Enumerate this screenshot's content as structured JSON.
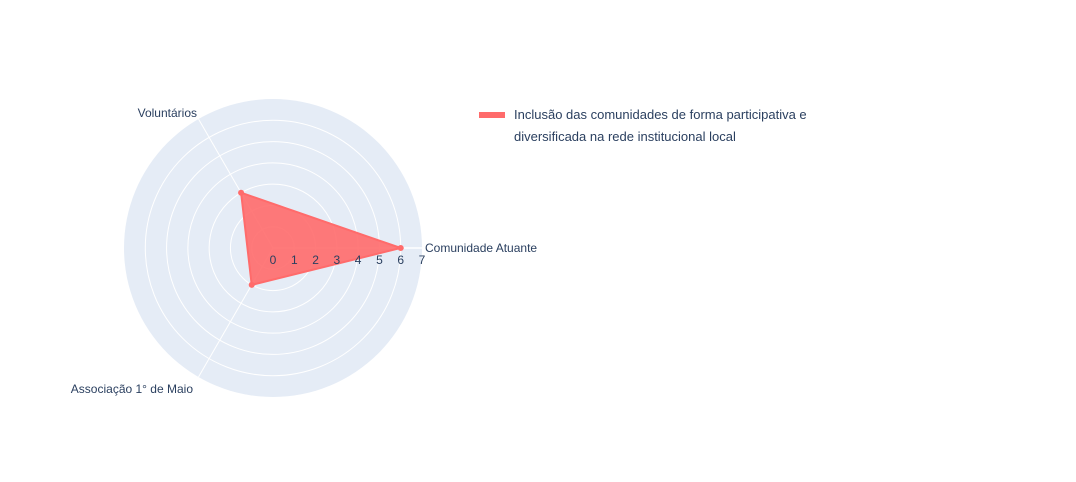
{
  "chart_data": {
    "type": "radar",
    "categories": [
      "Comunidade Atuante",
      "Voluntários",
      "Associação 1° de Maio"
    ],
    "radial_range": [
      0,
      7
    ],
    "radial_ticks": [
      "0",
      "1",
      "2",
      "3",
      "4",
      "5",
      "6",
      "7"
    ],
    "series": [
      {
        "name": "Inclusão das comunidades de forma participativa e diversificada na rede institucional local",
        "values": [
          6,
          3,
          2
        ],
        "color": "#ff6b6b",
        "fill": "toself"
      }
    ],
    "legend": "top-right",
    "grid": true
  },
  "legend": {
    "label_line1": "Inclusão das comunidades de forma participativa e",
    "label_line2": "diversificada na rede institucional local"
  }
}
